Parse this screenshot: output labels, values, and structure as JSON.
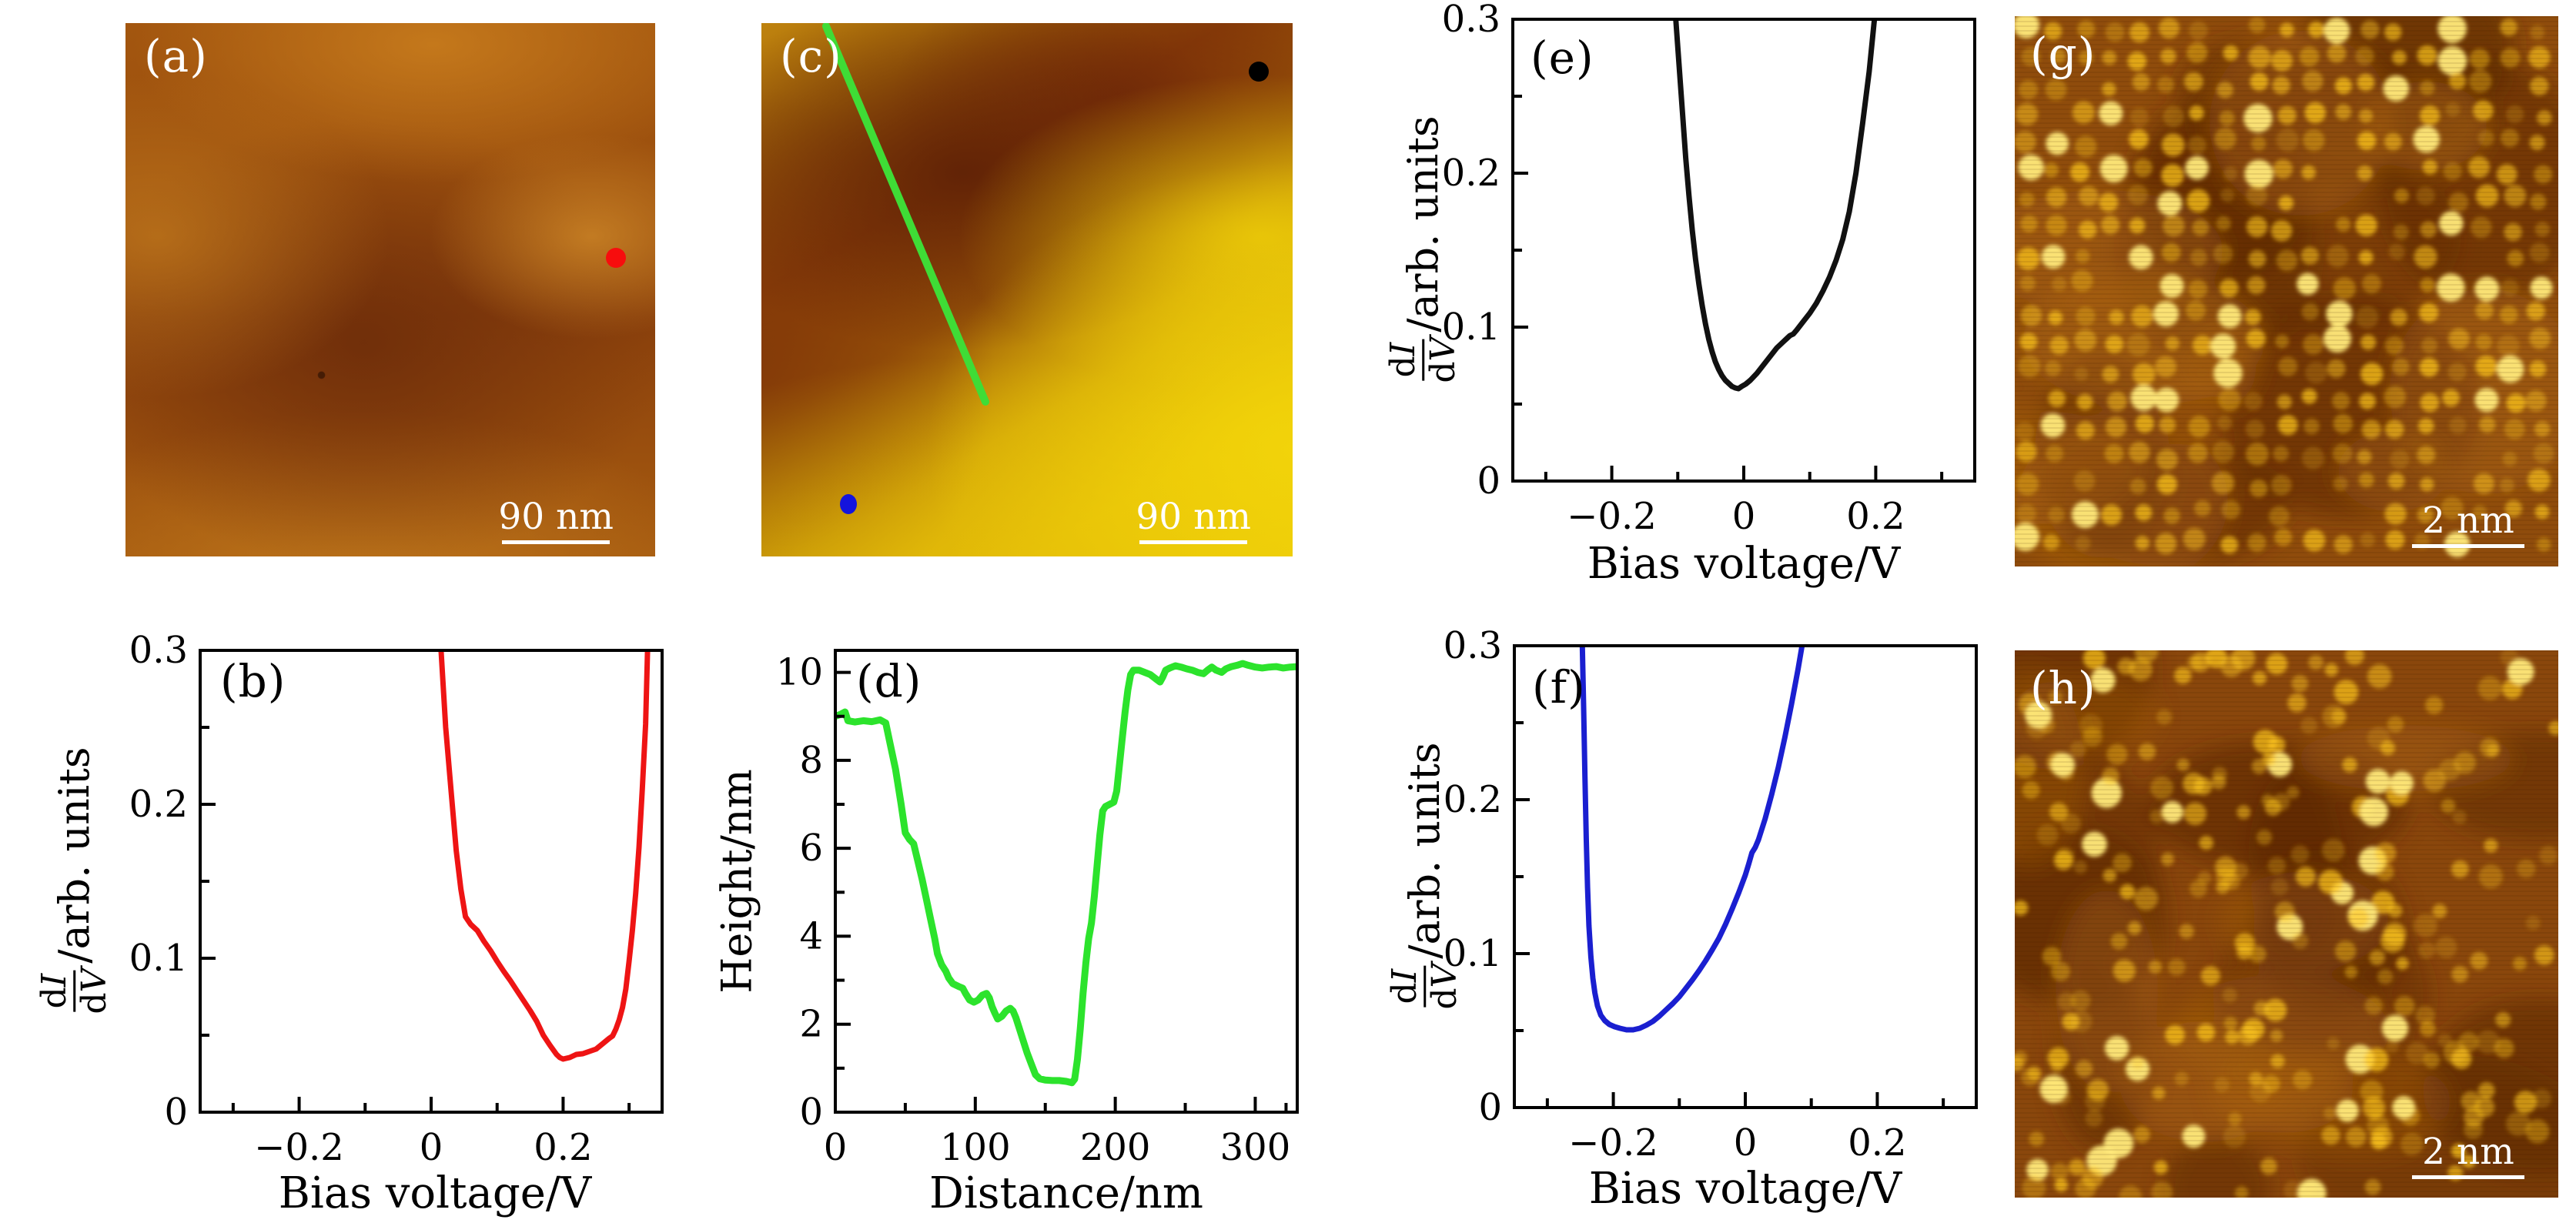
{
  "figure": {
    "background": "#ffffff",
    "panels": {
      "a": {
        "label": "(a)",
        "scalebar_label": "90 nm",
        "marker_color": "#f70d0d",
        "palette": {
          "base": "#9a5010",
          "light": "#c47c1c",
          "dark": "#6e2d08"
        }
      },
      "c": {
        "label": "(c)",
        "scalebar_label": "90 nm",
        "black_dot_color": "#000000",
        "blue_dot_color": "#1414dd",
        "profile_line_color": "#3fdc36",
        "palette": {
          "orange": "#bf830e",
          "dark_brown": "#76300 7",
          "yellow": "#ecca07"
        }
      },
      "g": {
        "label": "(g)",
        "scalebar_label": "2 nm",
        "palette": {
          "base_mid": "#8f4c0c",
          "base_dark": "#5f2a06",
          "base_light": "#aa6410",
          "spot": "#ffc81e",
          "spot_bright": "#ffe97a"
        }
      },
      "h": {
        "label": "(h)",
        "scalebar_label": "2 nm",
        "palette": {
          "base_mid": "#8a470c",
          "base_dark": "#5c2806",
          "base_light": "#a86210",
          "spot": "#ffc81e",
          "spot_bright": "#ffe97a"
        }
      }
    }
  },
  "chart_data": [
    {
      "id": "b",
      "type": "line",
      "panel_label": "(b)",
      "color": "#ee1414",
      "line_width": 7,
      "xlabel": "Bias voltage/V",
      "ylabel": {
        "d": "d",
        "num_var": "I",
        "den_var": "V",
        "suffix": "/arb. units"
      },
      "xlim": [
        -0.35,
        0.35
      ],
      "ylim": [
        0,
        0.3
      ],
      "grid": false,
      "legend": "none",
      "x_ticks": {
        "major": [
          {
            "v": -0.2,
            "label": "−0.2"
          },
          {
            "v": 0,
            "label": "0"
          },
          {
            "v": 0.2,
            "label": "0.2"
          }
        ],
        "minor": [
          -0.3,
          -0.1,
          0.1,
          0.3
        ]
      },
      "y_ticks": {
        "major": [
          {
            "v": 0,
            "label": "0"
          },
          {
            "v": 0.1,
            "label": "0.1"
          },
          {
            "v": 0.2,
            "label": "0.2"
          },
          {
            "v": 0.3,
            "label": "0.3"
          }
        ],
        "minor": [
          0.05,
          0.15,
          0.25
        ]
      },
      "points": [
        [
          0.015,
          0.3
        ],
        [
          0.022,
          0.25
        ],
        [
          0.03,
          0.21
        ],
        [
          0.038,
          0.17
        ],
        [
          0.045,
          0.145
        ],
        [
          0.052,
          0.127
        ],
        [
          0.06,
          0.122
        ],
        [
          0.07,
          0.118
        ],
        [
          0.08,
          0.111
        ],
        [
          0.09,
          0.105
        ],
        [
          0.1,
          0.098
        ],
        [
          0.11,
          0.0915
        ],
        [
          0.12,
          0.0855
        ],
        [
          0.13,
          0.079
        ],
        [
          0.14,
          0.0725
        ],
        [
          0.15,
          0.066
        ],
        [
          0.16,
          0.059
        ],
        [
          0.17,
          0.05
        ],
        [
          0.18,
          0.0435
        ],
        [
          0.19,
          0.0375
        ],
        [
          0.195,
          0.0355
        ],
        [
          0.2,
          0.0345
        ],
        [
          0.21,
          0.0355
        ],
        [
          0.22,
          0.0375
        ],
        [
          0.23,
          0.038
        ],
        [
          0.24,
          0.0395
        ],
        [
          0.25,
          0.041
        ],
        [
          0.26,
          0.0445
        ],
        [
          0.27,
          0.048
        ],
        [
          0.275,
          0.0495
        ],
        [
          0.28,
          0.054
        ],
        [
          0.285,
          0.06
        ],
        [
          0.29,
          0.068
        ],
        [
          0.295,
          0.08
        ],
        [
          0.3,
          0.098
        ],
        [
          0.305,
          0.118
        ],
        [
          0.31,
          0.142
        ],
        [
          0.315,
          0.172
        ],
        [
          0.32,
          0.21
        ],
        [
          0.325,
          0.252
        ],
        [
          0.328,
          0.3
        ]
      ]
    },
    {
      "id": "d",
      "type": "line",
      "panel_label": "(d)",
      "color": "#2ce32c",
      "line_width": 9,
      "xlabel": "Distance/nm",
      "ylabel": "Height/nm",
      "xlim": [
        0,
        330
      ],
      "ylim": [
        0,
        10.5
      ],
      "grid": false,
      "legend": "none",
      "x_ticks": {
        "major": [
          {
            "v": 0,
            "label": "0"
          },
          {
            "v": 100,
            "label": "100"
          },
          {
            "v": 200,
            "label": "200"
          },
          {
            "v": 300,
            "label": "300"
          }
        ],
        "minor": [
          50,
          150,
          250,
          322
        ]
      },
      "y_ticks": {
        "major": [
          {
            "v": 0,
            "label": "0"
          },
          {
            "v": 2,
            "label": "2"
          },
          {
            "v": 4,
            "label": "4"
          },
          {
            "v": 6,
            "label": "6"
          },
          {
            "v": 8,
            "label": "8"
          },
          {
            "v": 10,
            "label": "10"
          }
        ],
        "minor": [
          1,
          3,
          5,
          7,
          9
        ]
      },
      "points": [
        [
          0,
          9.0
        ],
        [
          4,
          9.05
        ],
        [
          7,
          9.1
        ],
        [
          9,
          8.9
        ],
        [
          14,
          8.87
        ],
        [
          20,
          8.9
        ],
        [
          26,
          8.88
        ],
        [
          32,
          8.92
        ],
        [
          36,
          8.85
        ],
        [
          39,
          8.4
        ],
        [
          43,
          7.8
        ],
        [
          47,
          7.0
        ],
        [
          50,
          6.35
        ],
        [
          53,
          6.2
        ],
        [
          56,
          6.1
        ],
        [
          59,
          5.7
        ],
        [
          62,
          5.3
        ],
        [
          65,
          4.85
        ],
        [
          68,
          4.4
        ],
        [
          71,
          3.95
        ],
        [
          73,
          3.6
        ],
        [
          76,
          3.35
        ],
        [
          79,
          3.2
        ],
        [
          81,
          3.05
        ],
        [
          84,
          2.92
        ],
        [
          88,
          2.86
        ],
        [
          91,
          2.82
        ],
        [
          93,
          2.7
        ],
        [
          96,
          2.55
        ],
        [
          99,
          2.5
        ],
        [
          102,
          2.55
        ],
        [
          105,
          2.66
        ],
        [
          108,
          2.7
        ],
        [
          110,
          2.6
        ],
        [
          112,
          2.4
        ],
        [
          114,
          2.25
        ],
        [
          116,
          2.12
        ],
        [
          119,
          2.18
        ],
        [
          122,
          2.3
        ],
        [
          125,
          2.36
        ],
        [
          127,
          2.3
        ],
        [
          129,
          2.15
        ],
        [
          131,
          1.95
        ],
        [
          134,
          1.65
        ],
        [
          137,
          1.35
        ],
        [
          140,
          1.1
        ],
        [
          143,
          0.85
        ],
        [
          146,
          0.76
        ],
        [
          150,
          0.73
        ],
        [
          155,
          0.72
        ],
        [
          160,
          0.72
        ],
        [
          165,
          0.7
        ],
        [
          169,
          0.67
        ],
        [
          171,
          0.75
        ],
        [
          173,
          1.2
        ],
        [
          175,
          1.9
        ],
        [
          177,
          2.7
        ],
        [
          179,
          3.4
        ],
        [
          181,
          3.95
        ],
        [
          183,
          4.3
        ],
        [
          185,
          4.9
        ],
        [
          187,
          5.6
        ],
        [
          189,
          6.3
        ],
        [
          191,
          6.85
        ],
        [
          193,
          6.95
        ],
        [
          196,
          7.0
        ],
        [
          199,
          7.05
        ],
        [
          201,
          7.3
        ],
        [
          203,
          7.9
        ],
        [
          205,
          8.5
        ],
        [
          207,
          9.1
        ],
        [
          209,
          9.6
        ],
        [
          211,
          9.95
        ],
        [
          213,
          10.05
        ],
        [
          217,
          10.05
        ],
        [
          221,
          10.0
        ],
        [
          225,
          9.95
        ],
        [
          229,
          9.85
        ],
        [
          232,
          9.78
        ],
        [
          234,
          9.9
        ],
        [
          236,
          10.05
        ],
        [
          239,
          10.1
        ],
        [
          243,
          10.15
        ],
        [
          247,
          10.12
        ],
        [
          251,
          10.08
        ],
        [
          255,
          10.05
        ],
        [
          259,
          10.0
        ],
        [
          263,
          9.97
        ],
        [
          266,
          10.05
        ],
        [
          269,
          10.12
        ],
        [
          272,
          10.05
        ],
        [
          276,
          10.0
        ],
        [
          279,
          10.08
        ],
        [
          283,
          10.13
        ],
        [
          287,
          10.16
        ],
        [
          291,
          10.2
        ],
        [
          295,
          10.16
        ],
        [
          300,
          10.12
        ],
        [
          305,
          10.1
        ],
        [
          310,
          10.12
        ],
        [
          315,
          10.13
        ],
        [
          320,
          10.1
        ],
        [
          325,
          10.12
        ],
        [
          330,
          10.13
        ]
      ]
    },
    {
      "id": "e",
      "type": "line",
      "panel_label": "(e)",
      "color": "#111111",
      "line_width": 7,
      "xlabel": "Bias voltage/V",
      "ylabel": {
        "d": "d",
        "num_var": "I",
        "den_var": "V",
        "suffix": "/arb. units"
      },
      "xlim": [
        -0.35,
        0.35
      ],
      "ylim": [
        0,
        0.3
      ],
      "grid": false,
      "legend": "none",
      "x_ticks": {
        "major": [
          {
            "v": -0.2,
            "label": "−0.2"
          },
          {
            "v": 0,
            "label": "0"
          },
          {
            "v": 0.2,
            "label": "0.2"
          }
        ],
        "minor": [
          -0.3,
          -0.1,
          0.1,
          0.3
        ]
      },
      "y_ticks": {
        "major": [
          {
            "v": 0,
            "label": "0"
          },
          {
            "v": 0.1,
            "label": "0.1"
          },
          {
            "v": 0.2,
            "label": "0.2"
          },
          {
            "v": 0.3,
            "label": "0.3"
          }
        ],
        "minor": [
          0.05,
          0.15,
          0.25
        ]
      },
      "points": [
        [
          -0.103,
          0.3
        ],
        [
          -0.098,
          0.27
        ],
        [
          -0.093,
          0.24
        ],
        [
          -0.088,
          0.21
        ],
        [
          -0.083,
          0.185
        ],
        [
          -0.078,
          0.163
        ],
        [
          -0.073,
          0.144
        ],
        [
          -0.068,
          0.128
        ],
        [
          -0.063,
          0.114
        ],
        [
          -0.058,
          0.102
        ],
        [
          -0.053,
          0.092
        ],
        [
          -0.048,
          0.084
        ],
        [
          -0.043,
          0.0775
        ],
        [
          -0.038,
          0.0725
        ],
        [
          -0.033,
          0.0685
        ],
        [
          -0.028,
          0.0655
        ],
        [
          -0.023,
          0.0635
        ],
        [
          -0.018,
          0.0615
        ],
        [
          -0.013,
          0.0605
        ],
        [
          -0.008,
          0.06
        ],
        [
          -0.003,
          0.0615
        ],
        [
          0.003,
          0.063
        ],
        [
          0.01,
          0.0655
        ],
        [
          0.02,
          0.07
        ],
        [
          0.03,
          0.0755
        ],
        [
          0.04,
          0.081
        ],
        [
          0.05,
          0.0865
        ],
        [
          0.06,
          0.0905
        ],
        [
          0.065,
          0.0925
        ],
        [
          0.07,
          0.0945
        ],
        [
          0.075,
          0.0955
        ],
        [
          0.08,
          0.098
        ],
        [
          0.09,
          0.1035
        ],
        [
          0.1,
          0.109
        ],
        [
          0.11,
          0.1155
        ],
        [
          0.12,
          0.1235
        ],
        [
          0.13,
          0.1325
        ],
        [
          0.14,
          0.1435
        ],
        [
          0.15,
          0.157
        ],
        [
          0.16,
          0.175
        ],
        [
          0.17,
          0.2
        ],
        [
          0.18,
          0.232
        ],
        [
          0.19,
          0.266
        ],
        [
          0.198,
          0.3
        ]
      ]
    },
    {
      "id": "f",
      "type": "line",
      "panel_label": "(f)",
      "color": "#1a1fd0",
      "line_width": 7,
      "xlabel": "Bias voltage/V",
      "ylabel": {
        "d": "d",
        "num_var": "I",
        "den_var": "V",
        "suffix": "/arb. units"
      },
      "xlim": [
        -0.35,
        0.35
      ],
      "ylim": [
        0,
        0.3
      ],
      "grid": false,
      "legend": "none",
      "x_ticks": {
        "major": [
          {
            "v": -0.2,
            "label": "−0.2"
          },
          {
            "v": 0,
            "label": "0"
          },
          {
            "v": 0.2,
            "label": "0.2"
          }
        ],
        "minor": [
          -0.3,
          -0.1,
          0.1,
          0.3
        ]
      },
      "y_ticks": {
        "major": [
          {
            "v": 0,
            "label": "0"
          },
          {
            "v": 0.1,
            "label": "0.1"
          },
          {
            "v": 0.2,
            "label": "0.2"
          },
          {
            "v": 0.3,
            "label": "0.3"
          }
        ],
        "minor": [
          0.05,
          0.15,
          0.25
        ]
      },
      "points": [
        [
          -0.247,
          0.3
        ],
        [
          -0.245,
          0.26
        ],
        [
          -0.243,
          0.215
        ],
        [
          -0.241,
          0.175
        ],
        [
          -0.239,
          0.143
        ],
        [
          -0.237,
          0.118
        ],
        [
          -0.234,
          0.098
        ],
        [
          -0.231,
          0.084
        ],
        [
          -0.228,
          0.0745
        ],
        [
          -0.224,
          0.066
        ],
        [
          -0.219,
          0.06
        ],
        [
          -0.213,
          0.0565
        ],
        [
          -0.206,
          0.054
        ],
        [
          -0.198,
          0.0525
        ],
        [
          -0.19,
          0.0515
        ],
        [
          -0.18,
          0.0505
        ],
        [
          -0.17,
          0.0505
        ],
        [
          -0.16,
          0.0515
        ],
        [
          -0.15,
          0.0535
        ],
        [
          -0.14,
          0.056
        ],
        [
          -0.13,
          0.0595
        ],
        [
          -0.12,
          0.0635
        ],
        [
          -0.11,
          0.0675
        ],
        [
          -0.1,
          0.072
        ],
        [
          -0.09,
          0.0775
        ],
        [
          -0.08,
          0.083
        ],
        [
          -0.07,
          0.089
        ],
        [
          -0.06,
          0.0955
        ],
        [
          -0.05,
          0.1025
        ],
        [
          -0.04,
          0.11
        ],
        [
          -0.03,
          0.119
        ],
        [
          -0.02,
          0.129
        ],
        [
          -0.01,
          0.1395
        ],
        [
          0.0,
          0.151
        ],
        [
          0.005,
          0.158
        ],
        [
          0.01,
          0.1655
        ],
        [
          0.015,
          0.169
        ],
        [
          0.02,
          0.174
        ],
        [
          0.03,
          0.1875
        ],
        [
          0.04,
          0.2035
        ],
        [
          0.05,
          0.221
        ],
        [
          0.06,
          0.2405
        ],
        [
          0.07,
          0.262
        ],
        [
          0.08,
          0.285
        ],
        [
          0.086,
          0.3
        ]
      ]
    }
  ]
}
